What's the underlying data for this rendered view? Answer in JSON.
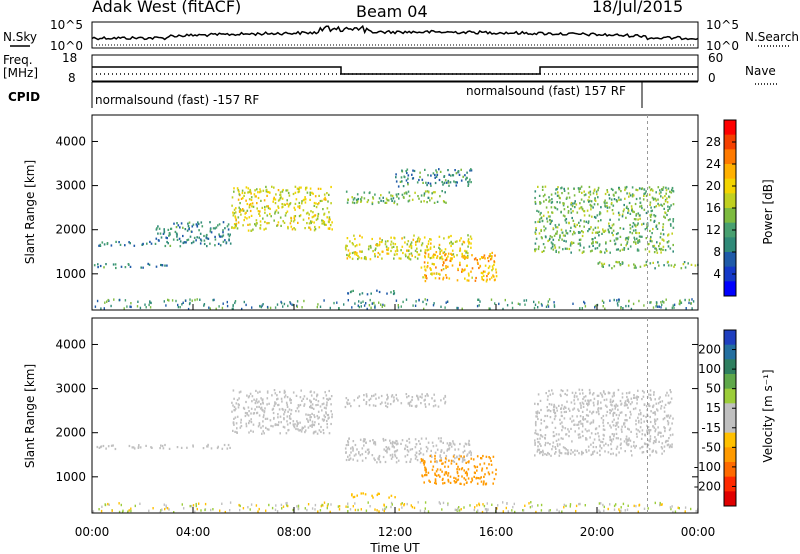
{
  "header": {
    "station": "Adak West (fitACF)",
    "beam": "Beam 04",
    "date": "18/Jul/2015"
  },
  "status_panels": {
    "nsky_label": "N.Sky",
    "nsearch_label": "N.Search",
    "noise_left_ticks": [
      "10^5",
      "10^0"
    ],
    "noise_right_ticks": [
      "10^5",
      "10^0"
    ],
    "freq_label_line1": "Freq.",
    "freq_label_line2": "[MHz]",
    "freq_ticks": [
      "18",
      "8"
    ],
    "nave_label": "Nave",
    "nave_ticks": [
      "60",
      "0"
    ],
    "cpid_label": "CPID",
    "cpid_segments": [
      {
        "text": "normalsound (fast) -157 RF",
        "start_hour": 0
      },
      {
        "text": "normalsound (fast) 157 RF",
        "start_hour": 22
      }
    ]
  },
  "colorbars": {
    "power": {
      "label": "Power [dB]",
      "ticks": [
        "28",
        "24",
        "20",
        "16",
        "12",
        "8",
        "4"
      ],
      "colors": [
        "#ff0000",
        "#f54000",
        "#ff7a00",
        "#ffb000",
        "#f3d400",
        "#c0d020",
        "#7dbb40",
        "#48a070",
        "#308a78",
        "#1f5aa8",
        "#1438c8",
        "#0000ff"
      ]
    },
    "velocity": {
      "label": "Velocity [m s⁻¹]",
      "ticks": [
        "200",
        "100",
        "50",
        "15",
        "-15",
        "-50",
        "-100",
        "-200"
      ],
      "colors": [
        "#1f3fbf",
        "#246fa0",
        "#2f7f5f",
        "#5fa84a",
        "#9ccd3a",
        "#c0c0c0",
        "#c0c0c0",
        "#ffc000",
        "#ff9a00",
        "#ff6a00",
        "#ff2a00",
        "#e00000"
      ]
    }
  },
  "x_axis": {
    "label": "Time UT",
    "ticks": [
      "00:00",
      "04:00",
      "08:00",
      "12:00",
      "16:00",
      "20:00",
      "00:00"
    ]
  },
  "y_axis": {
    "label": "Slant Range [km]",
    "ticks": [
      "1000",
      "2000",
      "3000",
      "4000"
    ]
  },
  "chart_data": [
    {
      "type": "heatmap",
      "title": "Power",
      "xlabel": "Time UT",
      "ylabel": "Slant Range [km]",
      "xlim_hours": [
        0,
        24
      ],
      "ylim_km": [
        180,
        4600
      ],
      "colorbar_label": "Power [dB]",
      "colorbar_ticks": [
        4,
        8,
        12,
        16,
        20,
        24,
        28
      ],
      "regions": [
        {
          "t0": 0.0,
          "t1": 5.5,
          "r0": 1650,
          "r1": 1750,
          "dB": 8
        },
        {
          "t0": 2.5,
          "t1": 5.5,
          "r0": 1750,
          "r1": 2200,
          "dB": 8
        },
        {
          "t0": 0.0,
          "t1": 3.0,
          "r0": 1150,
          "r1": 1250,
          "dB": 8
        },
        {
          "t0": 5.5,
          "t1": 9.5,
          "r0": 2000,
          "r1": 3000,
          "dB": 16
        },
        {
          "t0": 10.0,
          "t1": 14.0,
          "r0": 2600,
          "r1": 2900,
          "dB": 12
        },
        {
          "t0": 12.0,
          "t1": 15.0,
          "r0": 3000,
          "r1": 3400,
          "dB": 8
        },
        {
          "t0": 10.0,
          "t1": 15.0,
          "r0": 1350,
          "r1": 1900,
          "dB": 16
        },
        {
          "t0": 13.0,
          "t1": 16.0,
          "r0": 850,
          "r1": 1500,
          "dB": 20
        },
        {
          "t0": 10.0,
          "t1": 12.0,
          "r0": 550,
          "r1": 650,
          "dB": 8
        },
        {
          "t0": 17.5,
          "t1": 23.0,
          "r0": 1500,
          "r1": 3000,
          "dB": 12
        },
        {
          "t0": 20.0,
          "t1": 24.0,
          "r0": 1150,
          "r1": 1300,
          "dB": 12
        }
      ]
    },
    {
      "type": "heatmap",
      "title": "Velocity",
      "xlabel": "Time UT",
      "ylabel": "Slant Range [km]",
      "xlim_hours": [
        0,
        24
      ],
      "ylim_km": [
        180,
        4600
      ],
      "colorbar_label": "Velocity [m s⁻¹]",
      "colorbar_ticks": [
        -200,
        -100,
        -50,
        -15,
        15,
        50,
        100,
        200
      ],
      "regions": [
        {
          "t0": 0.0,
          "t1": 5.5,
          "r0": 1650,
          "r1": 1750,
          "v": 0
        },
        {
          "t0": 5.5,
          "t1": 9.5,
          "r0": 2000,
          "r1": 3000,
          "v": 0
        },
        {
          "t0": 10.0,
          "t1": 15.0,
          "r0": 1350,
          "r1": 1900,
          "v": 0
        },
        {
          "t0": 10.0,
          "t1": 14.0,
          "r0": 2600,
          "r1": 2900,
          "v": 0
        },
        {
          "t0": 13.0,
          "t1": 16.0,
          "r0": 850,
          "r1": 1500,
          "v": -60
        },
        {
          "t0": 10.0,
          "t1": 12.0,
          "r0": 550,
          "r1": 650,
          "v": -40
        },
        {
          "t0": 17.5,
          "t1": 23.0,
          "r0": 1500,
          "r1": 3000,
          "v": 0
        }
      ]
    }
  ]
}
